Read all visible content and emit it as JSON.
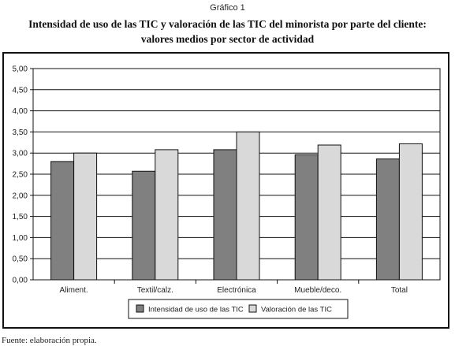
{
  "figure": {
    "caption": "Gráfico 1",
    "title_line1": "Intensidad de uso de las TIC y valoración de las TIC del minorista por parte del cliente:",
    "title_line2": "valores medios por sector de actividad",
    "source": "Fuente: elaboración propia."
  },
  "chart_data": {
    "type": "bar",
    "title": "Intensidad de uso de las TIC y valoración de las TIC del minorista por parte del cliente: valores medios por sector de actividad",
    "categories": [
      "Aliment.",
      "Textil/calz.",
      "Electrónica",
      "Mueble/deco.",
      "Total"
    ],
    "series": [
      {
        "name": "Intensidad de uso de las TIC",
        "color": "#808080",
        "values": [
          2.8,
          2.57,
          3.08,
          2.96,
          2.86
        ]
      },
      {
        "name": "Valoración de las TIC",
        "color": "#d9d9d9",
        "values": [
          3.0,
          3.08,
          3.5,
          3.19,
          3.22
        ]
      }
    ],
    "ylim": [
      0,
      5
    ],
    "ytick_step": 0.5,
    "ytick_labels": [
      "0,00",
      "0,50",
      "1,00",
      "1,50",
      "2,00",
      "2,50",
      "3,00",
      "3,50",
      "4,00",
      "4,50",
      "5,00"
    ],
    "xlabel": "",
    "ylabel": "",
    "grid": true,
    "legend_position": "bottom"
  }
}
